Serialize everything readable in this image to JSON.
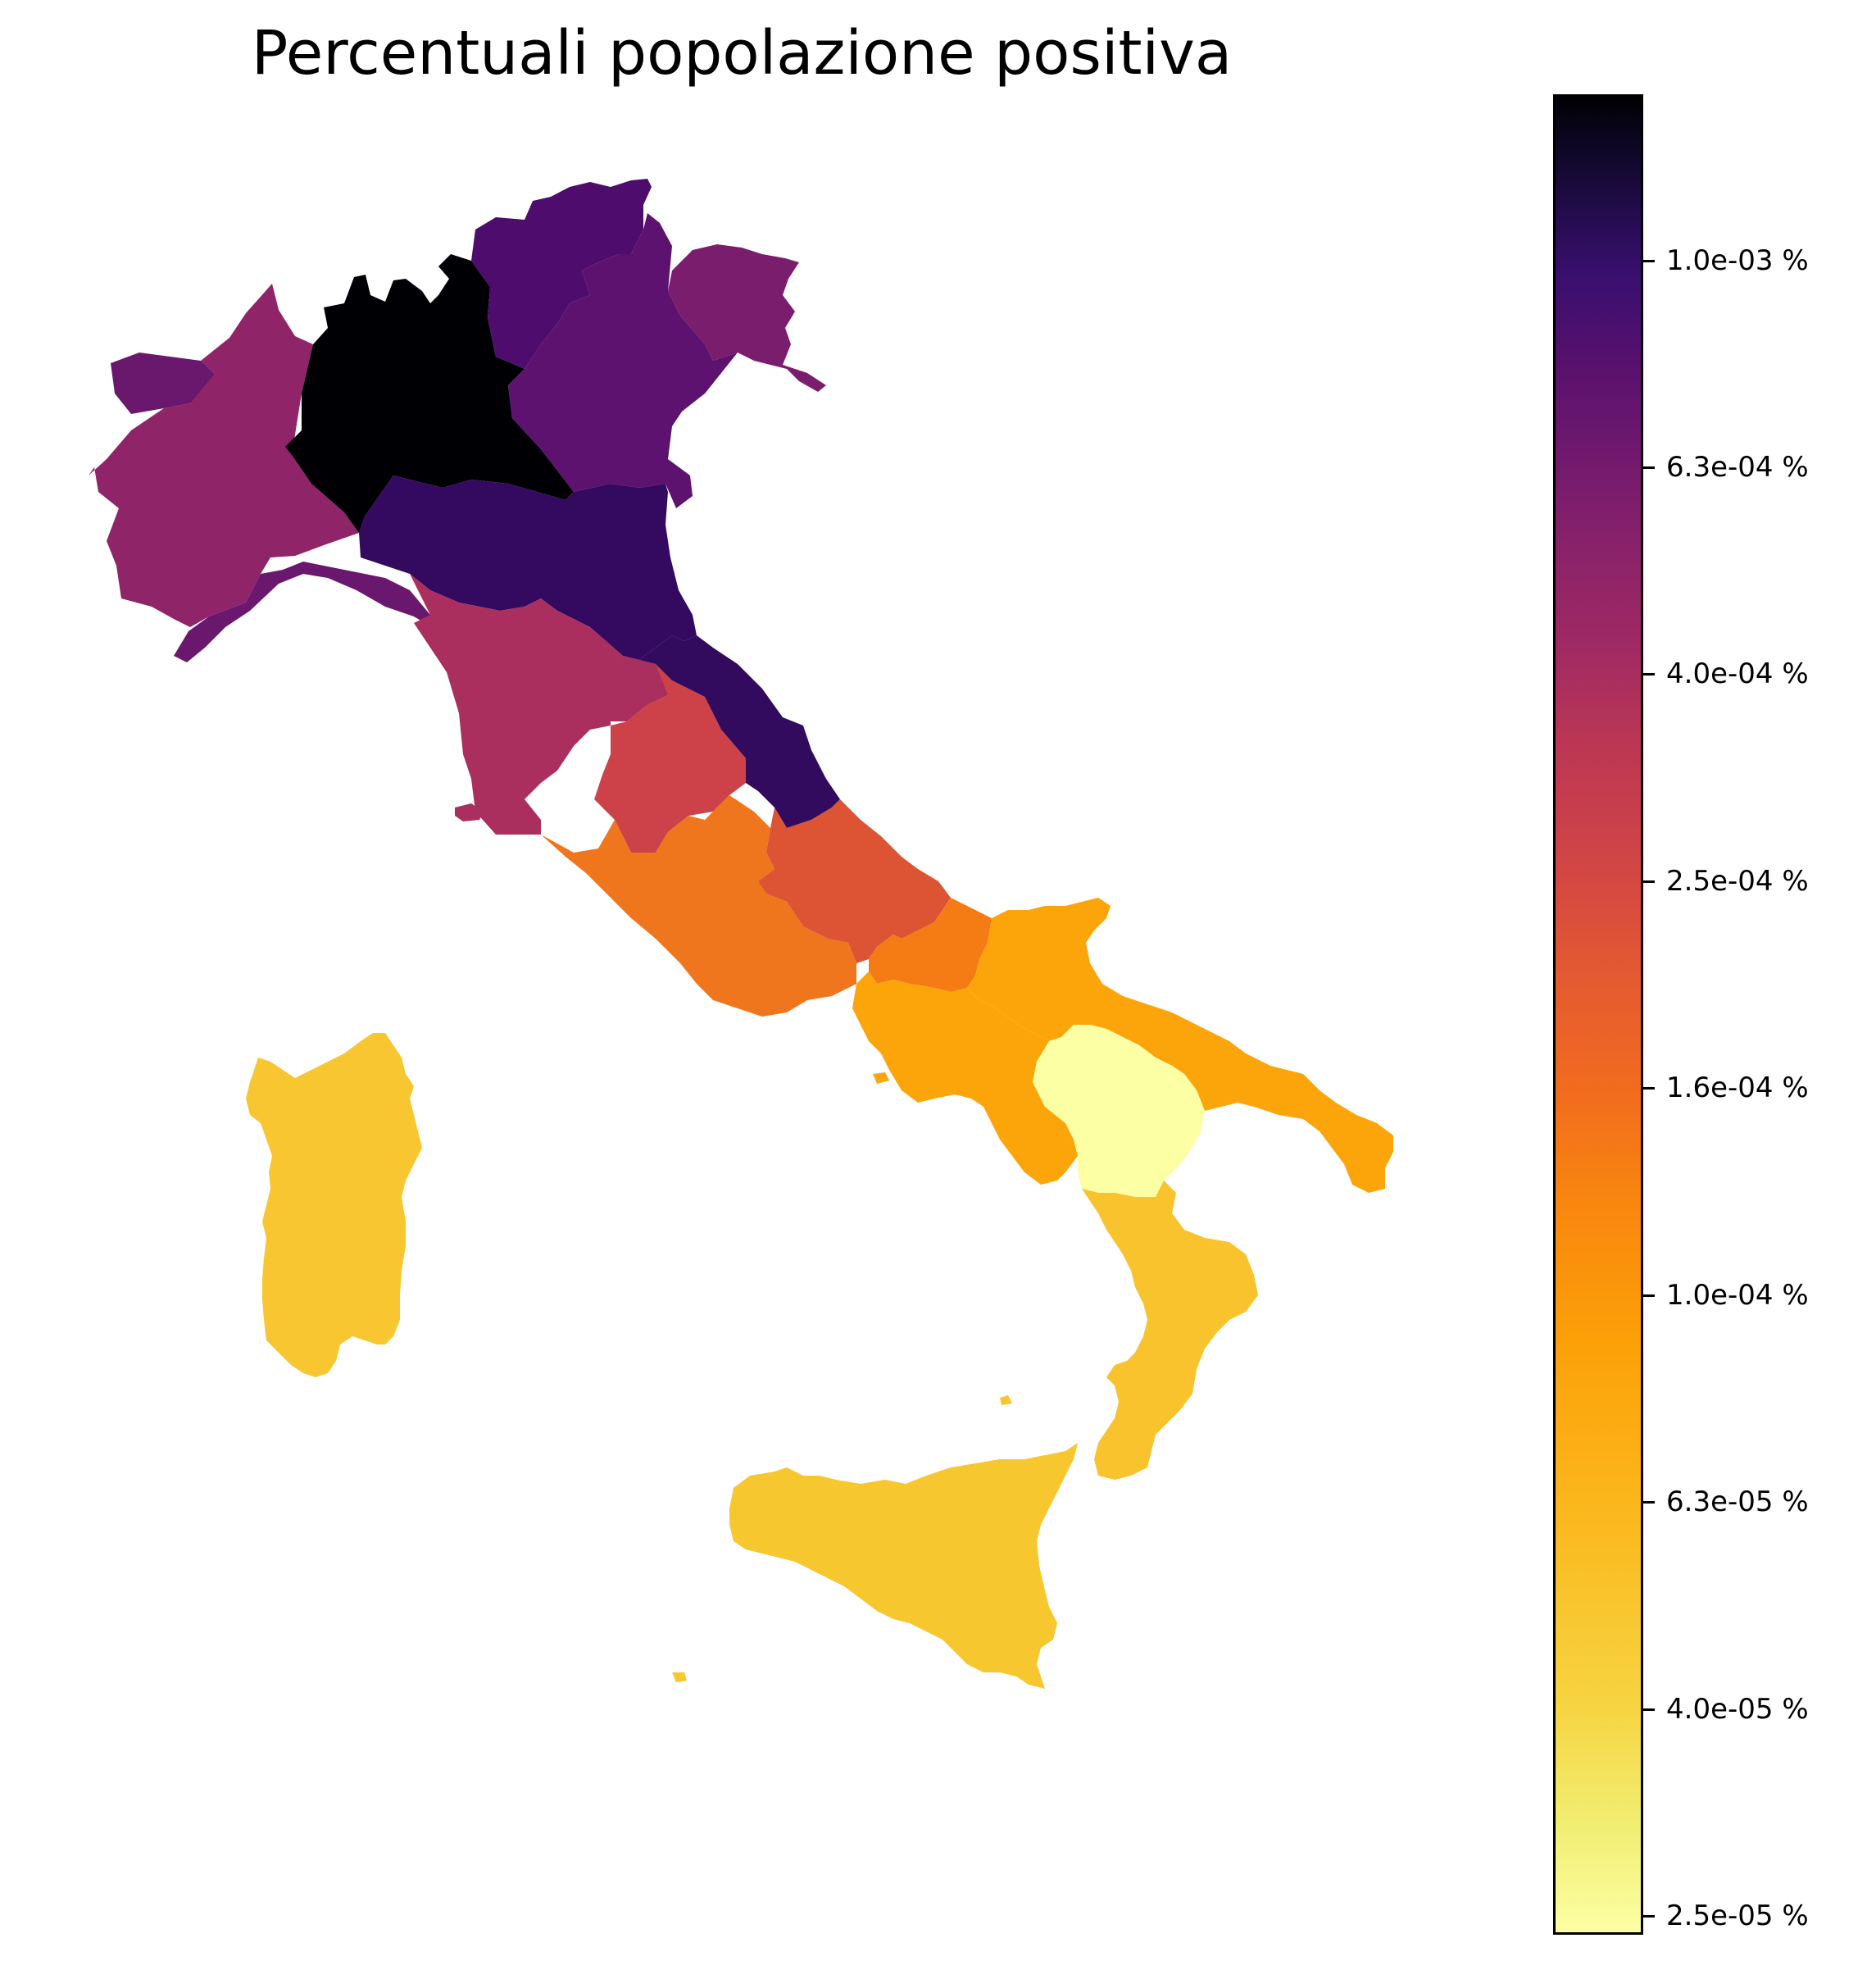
{
  "title": "Percentuali popolazione positiva",
  "colorbar": {
    "scale": "log",
    "colormap": "inferno (reversed: light = low, dark = high)",
    "ticks": [
      "1.0e-03 %",
      "6.3e-04 %",
      "4.0e-04 %",
      "2.5e-04 %",
      "1.6e-04 %",
      "1.0e-04 %",
      "6.3e-05 %",
      "4.0e-05 %",
      "2.5e-05 %"
    ]
  },
  "regions": [
    {
      "name": "Lombardia",
      "color": "#000004"
    },
    {
      "name": "Emilia-Romagna",
      "color": "#330a5f"
    },
    {
      "name": "Marche",
      "color": "#320a5e"
    },
    {
      "name": "Veneto",
      "color": "#5c126e"
    },
    {
      "name": "Trentino-Alto Adige",
      "color": "#4e0d6d"
    },
    {
      "name": "Friuli-Venezia Giulia",
      "color": "#7a1d6d"
    },
    {
      "name": "Valle d'Aosta",
      "color": "#6a176e"
    },
    {
      "name": "Liguria",
      "color": "#6a176e"
    },
    {
      "name": "Piemonte",
      "color": "#8f2469"
    },
    {
      "name": "Toscana",
      "color": "#aa2f5e"
    },
    {
      "name": "Umbria",
      "color": "#cc4248"
    },
    {
      "name": "Abruzzo",
      "color": "#dd5435"
    },
    {
      "name": "Lazio",
      "color": "#ef761d"
    },
    {
      "name": "Molise",
      "color": "#f57c15"
    },
    {
      "name": "Campania",
      "color": "#fca50a"
    },
    {
      "name": "Puglia",
      "color": "#fca50a"
    },
    {
      "name": "Basilicata",
      "color": "#fcffa4"
    },
    {
      "name": "Calabria",
      "color": "#f8c32d"
    },
    {
      "name": "Sicilia",
      "color": "#f6c72f"
    },
    {
      "name": "Sardegna",
      "color": "#f8c630"
    }
  ]
}
